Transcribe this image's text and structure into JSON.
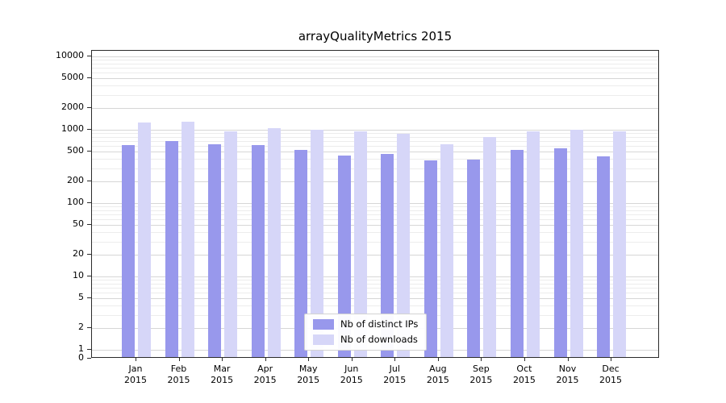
{
  "chart_data": {
    "type": "bar",
    "title": "arrayQualityMetrics 2015",
    "scale": "symlog",
    "grid": true,
    "legend_position": "bottom-center",
    "year": "2015",
    "categories": [
      "Jan",
      "Feb",
      "Mar",
      "Apr",
      "May",
      "Jun",
      "Jul",
      "Aug",
      "Sep",
      "Oct",
      "Nov",
      "Dec"
    ],
    "yticks": [
      0,
      1,
      2,
      5,
      10,
      20,
      50,
      100,
      200,
      500,
      1000,
      2000,
      5000,
      10000
    ],
    "ylim": [
      0,
      10000
    ],
    "series": [
      {
        "name": "Nb of distinct IPs",
        "color": "#9898ec",
        "values": [
          620,
          700,
          630,
          620,
          530,
          450,
          465,
          380,
          395,
          530,
          560,
          430
        ]
      },
      {
        "name": "Nb of downloads",
        "color": "#d6d6f8",
        "values": [
          1250,
          1300,
          960,
          1060,
          1000,
          950,
          880,
          640,
          790,
          950,
          1000,
          940
        ]
      }
    ]
  }
}
